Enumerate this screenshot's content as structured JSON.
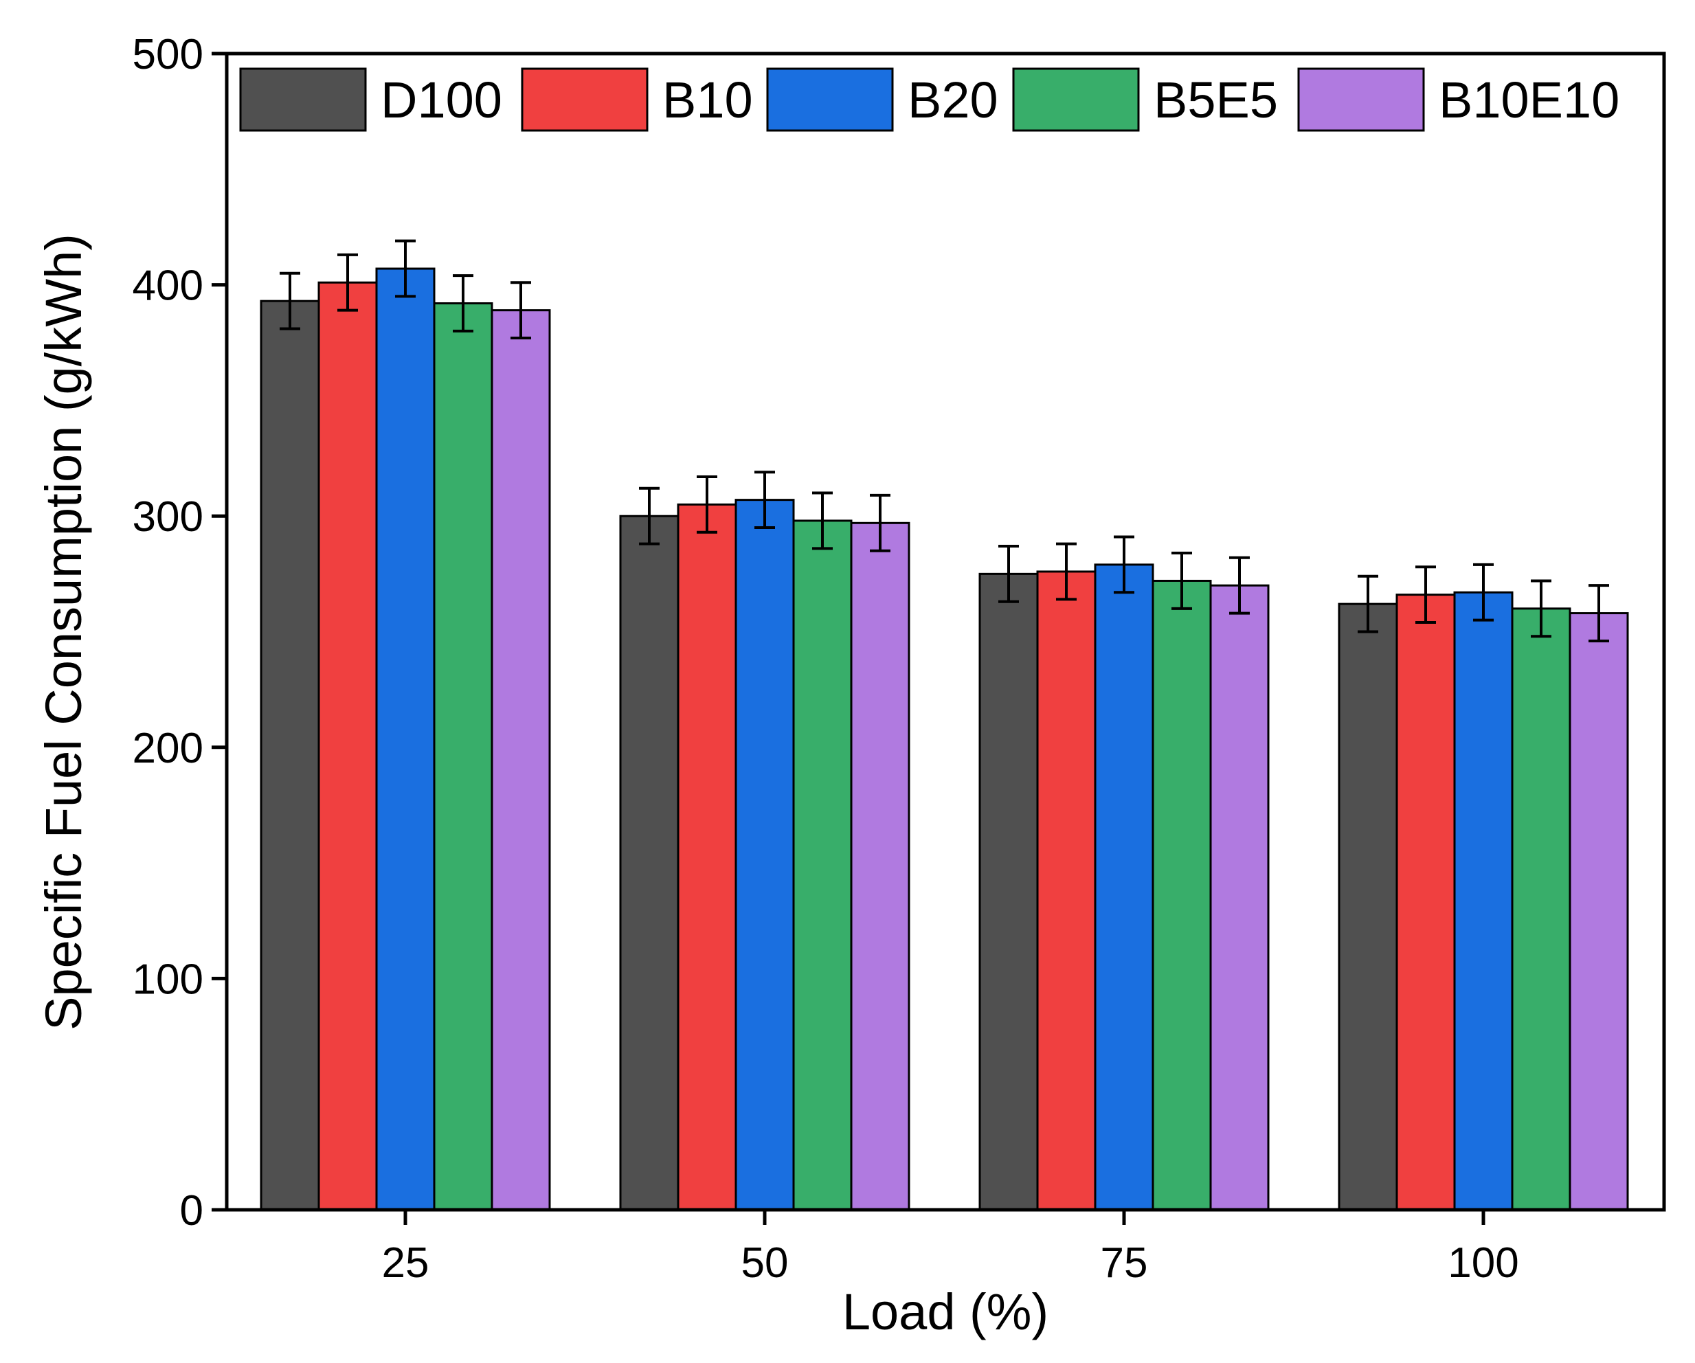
{
  "chart_data": {
    "type": "bar",
    "title": "",
    "xlabel": "Load (%)",
    "ylabel": "Specific Fuel Consumption (g/kWh)",
    "categories": [
      "25",
      "50",
      "75",
      "100"
    ],
    "ylim": [
      0,
      500
    ],
    "yticks": [
      "0",
      "100",
      "200",
      "300",
      "400",
      "500"
    ],
    "grid": false,
    "legend_position": "top",
    "series": [
      {
        "name": "D100",
        "color": "#505050",
        "values": [
          393,
          300,
          275,
          262
        ],
        "errors": [
          12,
          12,
          12,
          12
        ]
      },
      {
        "name": "B10",
        "color": "#f04040",
        "values": [
          401,
          305,
          276,
          266
        ],
        "errors": [
          12,
          12,
          12,
          12
        ]
      },
      {
        "name": "B20",
        "color": "#1a6fe0",
        "values": [
          407,
          307,
          279,
          267
        ],
        "errors": [
          12,
          12,
          12,
          12
        ]
      },
      {
        "name": "B5E5",
        "color": "#38ae6a",
        "values": [
          392,
          298,
          272,
          260
        ],
        "errors": [
          12,
          12,
          12,
          12
        ]
      },
      {
        "name": "B10E10",
        "color": "#b07ae0",
        "values": [
          389,
          297,
          270,
          258
        ],
        "errors": [
          12,
          12,
          12,
          12
        ]
      }
    ]
  }
}
